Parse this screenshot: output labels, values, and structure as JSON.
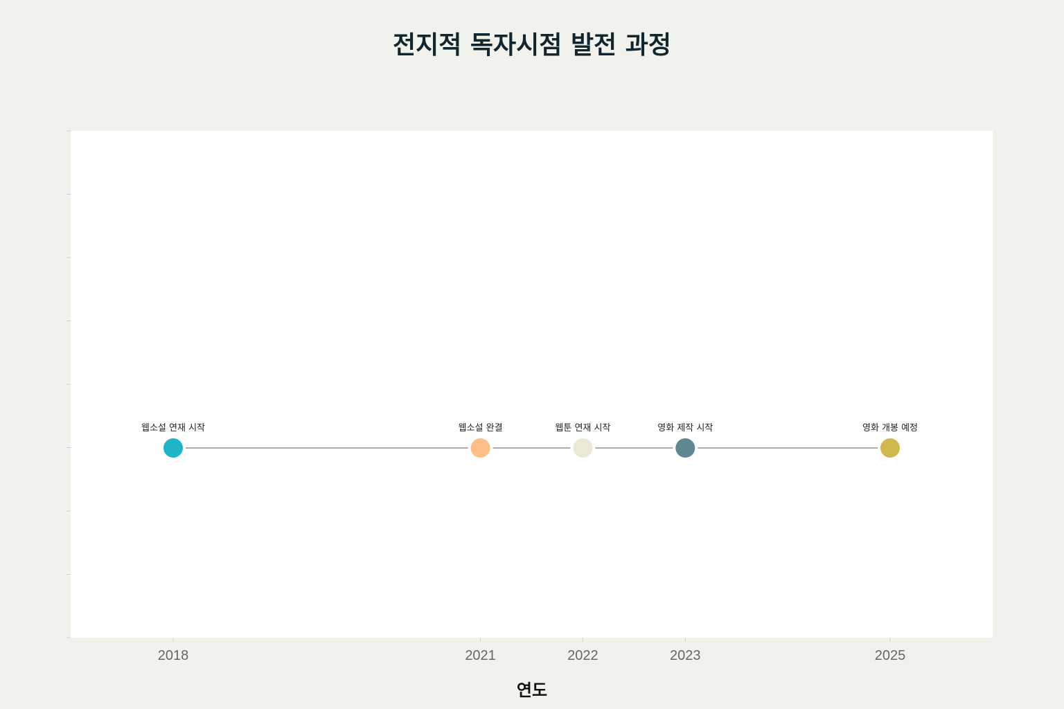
{
  "chart_data": {
    "type": "timeline",
    "title": "전지적 독자시점 발전 과정",
    "xlabel": "연도",
    "ylabel": "",
    "xlim": [
      2017,
      2026
    ],
    "x_ticks": [
      "2018",
      "2021",
      "2022",
      "2023",
      "2025"
    ],
    "grid": false,
    "events": [
      {
        "year": 2018,
        "label": "웹소설 연재 시작",
        "color": "#1fb5c9"
      },
      {
        "year": 2021,
        "label": "웹소설 완결",
        "color": "#fdbf86"
      },
      {
        "year": 2022,
        "label": "웹툰 연재 시작",
        "color": "#ebe8d5"
      },
      {
        "year": 2023,
        "label": "영화 제작 시작",
        "color": "#5e8790"
      },
      {
        "year": 2025,
        "label": "영화 개봉 예정",
        "color": "#d2b64e"
      }
    ]
  },
  "colors": {
    "background": "#f2f2ed",
    "plot_background": "#ffffff",
    "connector_line": "#aaaaaa"
  }
}
